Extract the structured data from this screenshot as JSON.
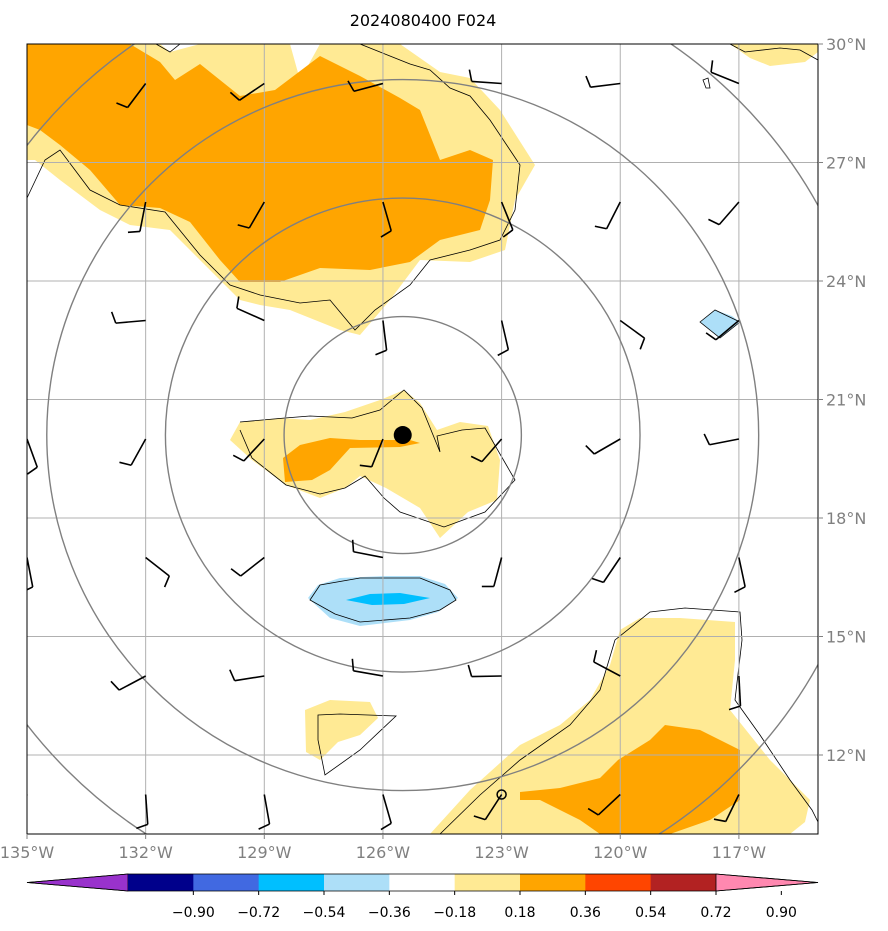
{
  "chart_data": {
    "type": "map",
    "title": "2024080400 F024",
    "projection": "lat-lon",
    "lon_range": [
      -135.0,
      -115.0
    ],
    "lat_range": [
      10.0,
      30.0
    ],
    "grid": true,
    "x_ticks": [
      -135,
      -132,
      -129,
      -126,
      -123,
      -120,
      -117
    ],
    "x_tick_labels": [
      "135°W",
      "132°W",
      "129°W",
      "126°W",
      "123°W",
      "120°W",
      "117°W"
    ],
    "y_ticks": [
      12,
      15,
      18,
      21,
      24,
      27,
      30
    ],
    "y_tick_labels": [
      "12°N",
      "15°N",
      "18°N",
      "21°N",
      "24°N",
      "27°N",
      "30°N"
    ],
    "center_marker": {
      "lon": -125.5,
      "lat": 20.1
    },
    "range_rings_deg": [
      3,
      6,
      9,
      12
    ],
    "small_marker": {
      "lon": -123.0,
      "lat": 11.0
    },
    "colorbar": {
      "orientation": "horizontal",
      "extend": "both",
      "boundaries": [
        -0.9,
        -0.72,
        -0.54,
        -0.36,
        -0.18,
        0.18,
        0.36,
        0.54,
        0.72,
        0.9
      ],
      "tick_labels": [
        "−0.90",
        "−0.72",
        "−0.54",
        "−0.36",
        "−0.18",
        "0.18",
        "0.36",
        "0.54",
        "0.72",
        "0.90"
      ],
      "colors": [
        "#9932CC",
        "#00008B",
        "#4169E1",
        "#00BFFF",
        "#ADDFF8",
        "#FFFFFF",
        "#FFEA94",
        "#FFA500",
        "#FF4500",
        "#B22222",
        "#FF88B0"
      ]
    },
    "wind_barb_grid": {
      "lons": [
        -135,
        -132,
        -129,
        -126,
        -123,
        -120,
        -117
      ],
      "lats": [
        11,
        14,
        17,
        20,
        23,
        26,
        29
      ]
    }
  }
}
